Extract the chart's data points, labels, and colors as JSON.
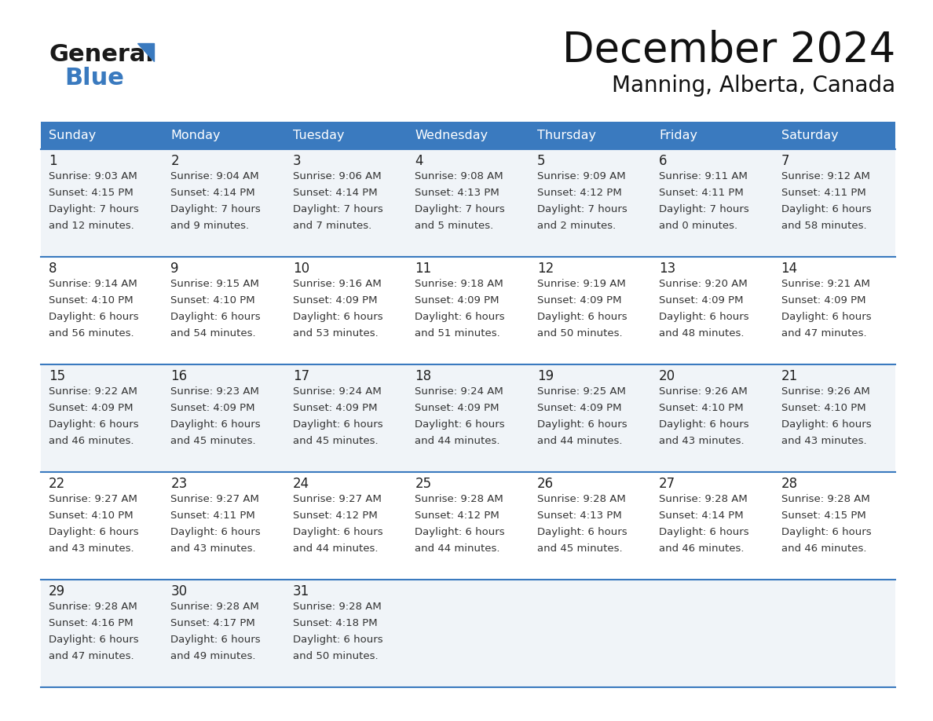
{
  "title": "December 2024",
  "subtitle": "Manning, Alberta, Canada",
  "header_color": "#3a7abf",
  "header_text_color": "#ffffff",
  "border_color": "#3a7abf",
  "cell_bg_even": "#f0f4f8",
  "cell_bg_odd": "#ffffff",
  "text_color": "#222222",
  "detail_color": "#333333",
  "day_names": [
    "Sunday",
    "Monday",
    "Tuesday",
    "Wednesday",
    "Thursday",
    "Friday",
    "Saturday"
  ],
  "weeks": [
    [
      {
        "day": "1",
        "sunrise": "9:03 AM",
        "sunset": "4:15 PM",
        "dl1": "7 hours",
        "dl2": "and 12 minutes."
      },
      {
        "day": "2",
        "sunrise": "9:04 AM",
        "sunset": "4:14 PM",
        "dl1": "7 hours",
        "dl2": "and 9 minutes."
      },
      {
        "day": "3",
        "sunrise": "9:06 AM",
        "sunset": "4:14 PM",
        "dl1": "7 hours",
        "dl2": "and 7 minutes."
      },
      {
        "day": "4",
        "sunrise": "9:08 AM",
        "sunset": "4:13 PM",
        "dl1": "7 hours",
        "dl2": "and 5 minutes."
      },
      {
        "day": "5",
        "sunrise": "9:09 AM",
        "sunset": "4:12 PM",
        "dl1": "7 hours",
        "dl2": "and 2 minutes."
      },
      {
        "day": "6",
        "sunrise": "9:11 AM",
        "sunset": "4:11 PM",
        "dl1": "7 hours",
        "dl2": "and 0 minutes."
      },
      {
        "day": "7",
        "sunrise": "9:12 AM",
        "sunset": "4:11 PM",
        "dl1": "6 hours",
        "dl2": "and 58 minutes."
      }
    ],
    [
      {
        "day": "8",
        "sunrise": "9:14 AM",
        "sunset": "4:10 PM",
        "dl1": "6 hours",
        "dl2": "and 56 minutes."
      },
      {
        "day": "9",
        "sunrise": "9:15 AM",
        "sunset": "4:10 PM",
        "dl1": "6 hours",
        "dl2": "and 54 minutes."
      },
      {
        "day": "10",
        "sunrise": "9:16 AM",
        "sunset": "4:09 PM",
        "dl1": "6 hours",
        "dl2": "and 53 minutes."
      },
      {
        "day": "11",
        "sunrise": "9:18 AM",
        "sunset": "4:09 PM",
        "dl1": "6 hours",
        "dl2": "and 51 minutes."
      },
      {
        "day": "12",
        "sunrise": "9:19 AM",
        "sunset": "4:09 PM",
        "dl1": "6 hours",
        "dl2": "and 50 minutes."
      },
      {
        "day": "13",
        "sunrise": "9:20 AM",
        "sunset": "4:09 PM",
        "dl1": "6 hours",
        "dl2": "and 48 minutes."
      },
      {
        "day": "14",
        "sunrise": "9:21 AM",
        "sunset": "4:09 PM",
        "dl1": "6 hours",
        "dl2": "and 47 minutes."
      }
    ],
    [
      {
        "day": "15",
        "sunrise": "9:22 AM",
        "sunset": "4:09 PM",
        "dl1": "6 hours",
        "dl2": "and 46 minutes."
      },
      {
        "day": "16",
        "sunrise": "9:23 AM",
        "sunset": "4:09 PM",
        "dl1": "6 hours",
        "dl2": "and 45 minutes."
      },
      {
        "day": "17",
        "sunrise": "9:24 AM",
        "sunset": "4:09 PM",
        "dl1": "6 hours",
        "dl2": "and 45 minutes."
      },
      {
        "day": "18",
        "sunrise": "9:24 AM",
        "sunset": "4:09 PM",
        "dl1": "6 hours",
        "dl2": "and 44 minutes."
      },
      {
        "day": "19",
        "sunrise": "9:25 AM",
        "sunset": "4:09 PM",
        "dl1": "6 hours",
        "dl2": "and 44 minutes."
      },
      {
        "day": "20",
        "sunrise": "9:26 AM",
        "sunset": "4:10 PM",
        "dl1": "6 hours",
        "dl2": "and 43 minutes."
      },
      {
        "day": "21",
        "sunrise": "9:26 AM",
        "sunset": "4:10 PM",
        "dl1": "6 hours",
        "dl2": "and 43 minutes."
      }
    ],
    [
      {
        "day": "22",
        "sunrise": "9:27 AM",
        "sunset": "4:10 PM",
        "dl1": "6 hours",
        "dl2": "and 43 minutes."
      },
      {
        "day": "23",
        "sunrise": "9:27 AM",
        "sunset": "4:11 PM",
        "dl1": "6 hours",
        "dl2": "and 43 minutes."
      },
      {
        "day": "24",
        "sunrise": "9:27 AM",
        "sunset": "4:12 PM",
        "dl1": "6 hours",
        "dl2": "and 44 minutes."
      },
      {
        "day": "25",
        "sunrise": "9:28 AM",
        "sunset": "4:12 PM",
        "dl1": "6 hours",
        "dl2": "and 44 minutes."
      },
      {
        "day": "26",
        "sunrise": "9:28 AM",
        "sunset": "4:13 PM",
        "dl1": "6 hours",
        "dl2": "and 45 minutes."
      },
      {
        "day": "27",
        "sunrise": "9:28 AM",
        "sunset": "4:14 PM",
        "dl1": "6 hours",
        "dl2": "and 46 minutes."
      },
      {
        "day": "28",
        "sunrise": "9:28 AM",
        "sunset": "4:15 PM",
        "dl1": "6 hours",
        "dl2": "and 46 minutes."
      }
    ],
    [
      {
        "day": "29",
        "sunrise": "9:28 AM",
        "sunset": "4:16 PM",
        "dl1": "6 hours",
        "dl2": "and 47 minutes."
      },
      {
        "day": "30",
        "sunrise": "9:28 AM",
        "sunset": "4:17 PM",
        "dl1": "6 hours",
        "dl2": "and 49 minutes."
      },
      {
        "day": "31",
        "sunrise": "9:28 AM",
        "sunset": "4:18 PM",
        "dl1": "6 hours",
        "dl2": "and 50 minutes."
      },
      null,
      null,
      null,
      null
    ]
  ],
  "logo_general_color": "#1a1a1a",
  "logo_blue_color": "#3a7abf"
}
